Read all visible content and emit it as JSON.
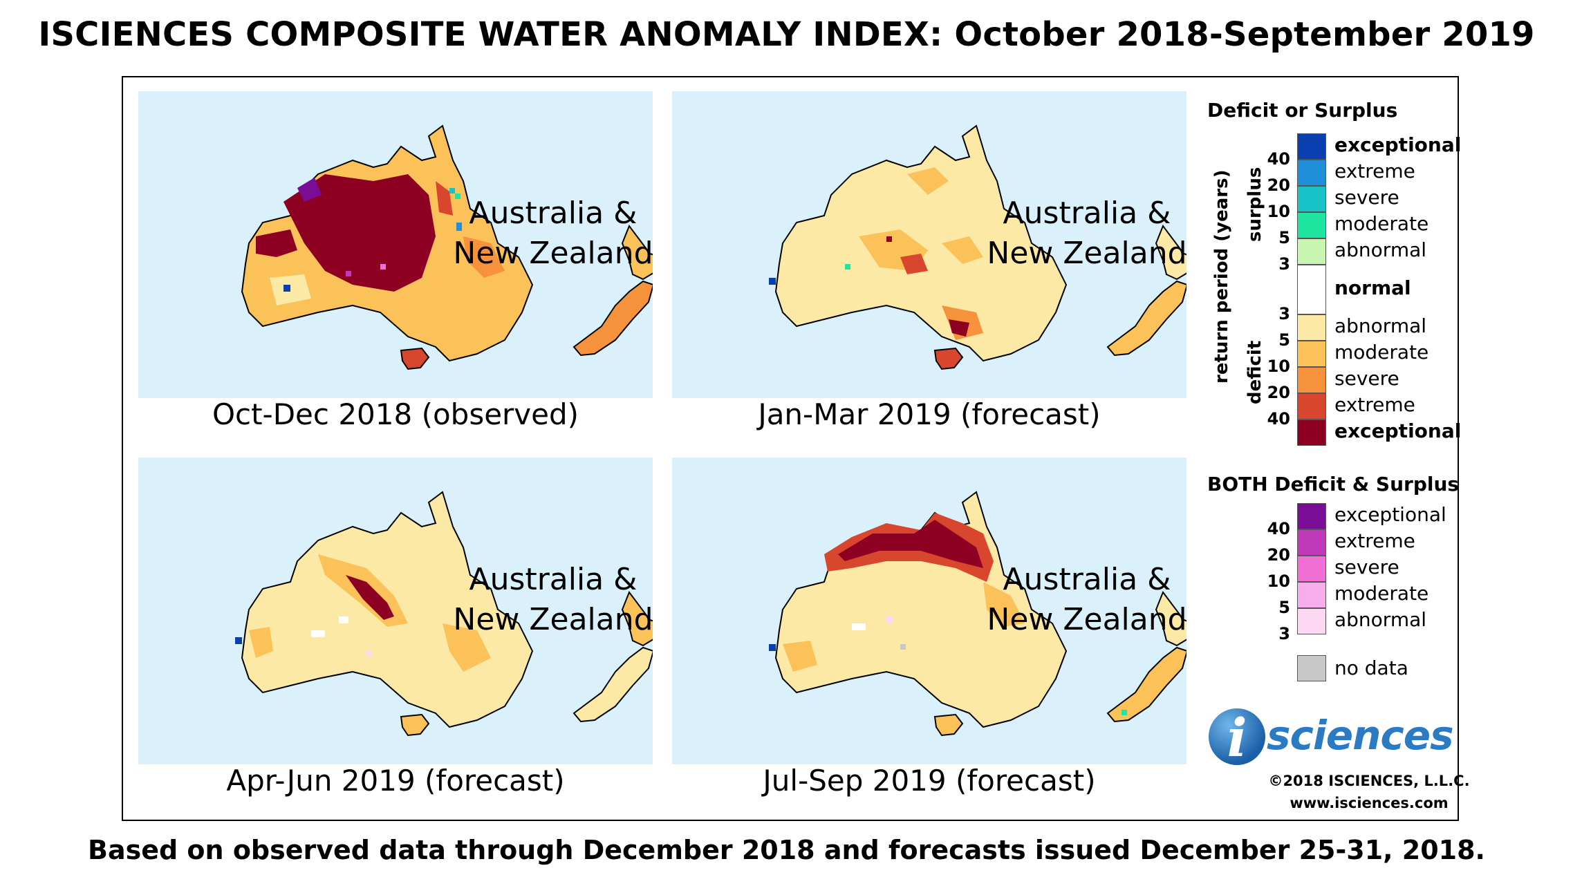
{
  "title": "ISCIENCES COMPOSITE WATER ANOMALY INDEX: October 2018-September 2019",
  "footer": "Based on observed data through December 2018 and forecasts issued December 25-31, 2018.",
  "panels": [
    {
      "label_line1": "Australia &",
      "label_line2": "New Zealand",
      "caption": "Oct-Dec 2018 (observed)"
    },
    {
      "label_line1": "Australia &",
      "label_line2": "New Zealand",
      "caption": "Jan-Mar 2019 (forecast)"
    },
    {
      "label_line1": "Australia &",
      "label_line2": "New Zealand",
      "caption": "Apr-Jun 2019 (forecast)"
    },
    {
      "label_line1": "Australia &",
      "label_line2": "New Zealand",
      "caption": "Jul-Sep 2019 (forecast)"
    }
  ],
  "legend": {
    "deficit_surplus_title": "Deficit or Surplus",
    "axis_label": "return period (years)",
    "surplus_label": "surplus",
    "deficit_label": "deficit",
    "surplus_ticks": [
      "40",
      "20",
      "10",
      "5",
      "3"
    ],
    "deficit_ticks": [
      "3",
      "5",
      "10",
      "20",
      "40"
    ],
    "surplus": [
      {
        "label": "exceptional",
        "color": "#0a3fb0"
      },
      {
        "label": "extreme",
        "color": "#1e8fd8"
      },
      {
        "label": "severe",
        "color": "#18c3c8"
      },
      {
        "label": "moderate",
        "color": "#1ee6a0"
      },
      {
        "label": "abnormal",
        "color": "#c8f5b0"
      }
    ],
    "normal": {
      "label": "normal",
      "color": "#ffffff"
    },
    "deficit": [
      {
        "label": "abnormal",
        "color": "#fde9a6"
      },
      {
        "label": "moderate",
        "color": "#fbc25a"
      },
      {
        "label": "severe",
        "color": "#f7923c"
      },
      {
        "label": "extreme",
        "color": "#d9462e"
      },
      {
        "label": "exceptional",
        "color": "#8e0022"
      }
    ],
    "both_title": "BOTH Deficit & Surplus",
    "both_ticks": [
      "40",
      "20",
      "10",
      "5",
      "3"
    ],
    "both": [
      {
        "label": "exceptional",
        "color": "#7a0d96"
      },
      {
        "label": "extreme",
        "color": "#bf3ab8"
      },
      {
        "label": "severe",
        "color": "#f070d6"
      },
      {
        "label": "moderate",
        "color": "#f8aeea"
      },
      {
        "label": "abnormal",
        "color": "#fcd8f2"
      }
    ],
    "no_data": {
      "label": "no data",
      "color": "#c8c8c8"
    }
  },
  "logo": {
    "i": "i",
    "text": "sciences"
  },
  "copyright": "©2018 ISCIENCES, L.L.C.",
  "website": "www.isciences.com",
  "colors": {
    "ocean": "#daf1fb"
  }
}
